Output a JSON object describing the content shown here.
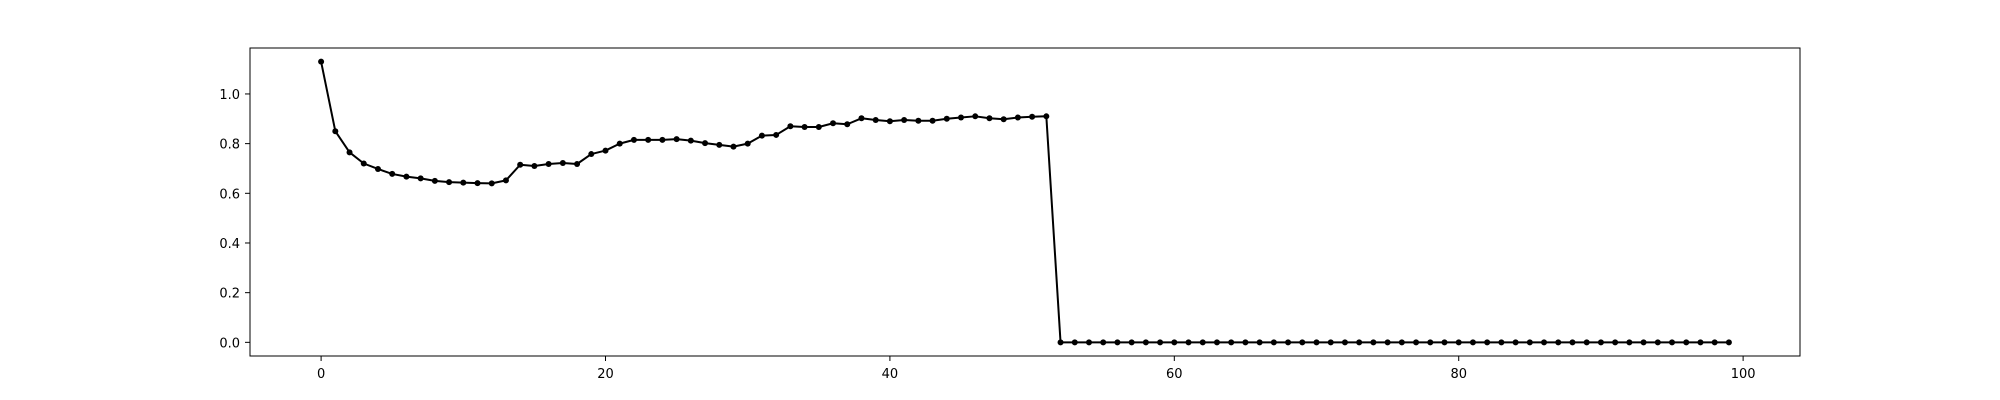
{
  "chart_data": {
    "type": "line",
    "title": "",
    "xlabel": "",
    "ylabel": "",
    "xlim": [
      -5,
      104
    ],
    "ylim": [
      -0.055,
      1.185
    ],
    "xticks": [
      0,
      20,
      40,
      60,
      80,
      100
    ],
    "yticks": [
      0.0,
      0.2,
      0.4,
      0.6,
      0.8,
      1.0
    ],
    "xtick_labels": [
      "0",
      "20",
      "40",
      "60",
      "80",
      "100"
    ],
    "ytick_labels": [
      "0.0",
      "0.2",
      "0.4",
      "0.6",
      "0.8",
      "1.0"
    ],
    "grid": false,
    "legend": "none",
    "colors": {
      "series": "#000000",
      "axes": "#000000",
      "background": "#ffffff"
    },
    "series": [
      {
        "marker": "dot",
        "x": [
          0,
          1,
          2,
          3,
          4,
          5,
          6,
          7,
          8,
          9,
          10,
          11,
          12,
          13,
          14,
          15,
          16,
          17,
          18,
          19,
          20,
          21,
          22,
          23,
          24,
          25,
          26,
          27,
          28,
          29,
          30,
          31,
          32,
          33,
          34,
          35,
          36,
          37,
          38,
          39,
          40,
          41,
          42,
          43,
          44,
          45,
          46,
          47,
          48,
          49,
          50,
          51,
          52,
          53,
          54,
          55,
          56,
          57,
          58,
          59,
          60,
          61,
          62,
          63,
          64,
          65,
          66,
          67,
          68,
          69,
          70,
          71,
          72,
          73,
          74,
          75,
          76,
          77,
          78,
          79,
          80,
          81,
          82,
          83,
          84,
          85,
          86,
          87,
          88,
          89,
          90,
          91,
          92,
          93,
          94,
          95,
          96,
          97,
          98,
          99
        ],
        "y": [
          1.13,
          0.85,
          0.765,
          0.72,
          0.698,
          0.678,
          0.667,
          0.66,
          0.65,
          0.645,
          0.643,
          0.641,
          0.64,
          0.652,
          0.715,
          0.71,
          0.718,
          0.722,
          0.718,
          0.758,
          0.772,
          0.8,
          0.815,
          0.815,
          0.815,
          0.818,
          0.812,
          0.802,
          0.795,
          0.788,
          0.8,
          0.832,
          0.835,
          0.87,
          0.867,
          0.867,
          0.882,
          0.878,
          0.902,
          0.895,
          0.89,
          0.895,
          0.892,
          0.892,
          0.9,
          0.905,
          0.91,
          0.902,
          0.898,
          0.905,
          0.908,
          0.91,
          0,
          0,
          0,
          0,
          0,
          0,
          0,
          0,
          0,
          0,
          0,
          0,
          0,
          0,
          0,
          0,
          0,
          0,
          0,
          0,
          0,
          0,
          0,
          0,
          0,
          0,
          0,
          0,
          0,
          0,
          0,
          0,
          0,
          0,
          0,
          0,
          0,
          0,
          0,
          0,
          0,
          0,
          0,
          0,
          0,
          0,
          0,
          0
        ]
      }
    ]
  }
}
